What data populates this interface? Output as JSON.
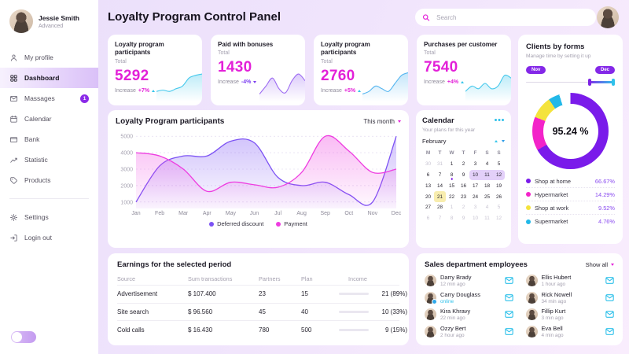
{
  "app": {
    "title": "Loyalty Program Control Panel"
  },
  "header": {
    "search_placeholder": "Search"
  },
  "sidebar": {
    "user": {
      "name": "Jessie Smith",
      "role": "Advanced"
    },
    "items": [
      {
        "label": "My profile",
        "icon": "profile-icon"
      },
      {
        "label": "Dashboard",
        "icon": "dashboard-icon",
        "active": true
      },
      {
        "label": "Massages",
        "icon": "mail-icon",
        "badge": "1"
      },
      {
        "label": "Calendar",
        "icon": "calendar-icon"
      },
      {
        "label": "Bank",
        "icon": "bank-icon"
      },
      {
        "label": "Statistic",
        "icon": "statistic-icon"
      },
      {
        "label": "Products",
        "icon": "products-icon"
      }
    ],
    "footer_items": [
      {
        "label": "Settings",
        "icon": "gear-icon"
      },
      {
        "label": "Login out",
        "icon": "logout-icon"
      }
    ]
  },
  "stat_cards": [
    {
      "title": "Loyalty program participants",
      "subtitle": "Total",
      "value": "5292",
      "increase_label": "Increase",
      "change": "+7%",
      "direction": "up"
    },
    {
      "title": "Paid with bonuses",
      "subtitle": "Total",
      "value": "1430",
      "increase_label": "Increase",
      "change": "-4%",
      "direction": "down"
    },
    {
      "title": "Loyalty program participants",
      "subtitle": "Total",
      "value": "2760",
      "increase_label": "Increase",
      "change": "+5%",
      "direction": "up"
    },
    {
      "title": "Purchases per customer",
      "subtitle": "Total",
      "value": "7540",
      "increase_label": "Increase",
      "change": "+4%",
      "direction": "up"
    }
  ],
  "main_chart": {
    "title": "Loyalty Program participants",
    "period": "This month"
  },
  "clients": {
    "title": "Clients by forms",
    "subtitle": "Manage time by setting it up",
    "range_start": "Nov",
    "range_end": "Dec",
    "center_label": "95.24 %"
  },
  "calendar": {
    "title": "Calendar",
    "subtitle": "Your plans for this year",
    "month": "February",
    "day_headers": [
      "M",
      "T",
      "W",
      "T",
      "F",
      "S",
      "S"
    ],
    "weeks": [
      [
        {
          "d": "30",
          "muted": true
        },
        {
          "d": "31",
          "muted": true
        },
        {
          "d": "1"
        },
        {
          "d": "2"
        },
        {
          "d": "3"
        },
        {
          "d": "4"
        },
        {
          "d": "5"
        }
      ],
      [
        {
          "d": "6"
        },
        {
          "d": "7"
        },
        {
          "d": "8",
          "dot": true
        },
        {
          "d": "9"
        },
        {
          "d": "10",
          "range": "start"
        },
        {
          "d": "11",
          "range": "mid"
        },
        {
          "d": "12",
          "range": "end"
        }
      ],
      [
        {
          "d": "13"
        },
        {
          "d": "14"
        },
        {
          "d": "15"
        },
        {
          "d": "16"
        },
        {
          "d": "17"
        },
        {
          "d": "18"
        },
        {
          "d": "19"
        }
      ],
      [
        {
          "d": "20"
        },
        {
          "d": "21",
          "highlight": true
        },
        {
          "d": "22"
        },
        {
          "d": "23"
        },
        {
          "d": "24"
        },
        {
          "d": "25"
        },
        {
          "d": "26"
        }
      ],
      [
        {
          "d": "27"
        },
        {
          "d": "28"
        },
        {
          "d": "1",
          "muted": true
        },
        {
          "d": "2",
          "muted": true
        },
        {
          "d": "3",
          "muted": true
        },
        {
          "d": "4",
          "muted": true
        },
        {
          "d": "5",
          "muted": true
        }
      ],
      [
        {
          "d": "6",
          "muted": true
        },
        {
          "d": "7",
          "muted": true
        },
        {
          "d": "8",
          "muted": true
        },
        {
          "d": "9",
          "muted": true
        },
        {
          "d": "10",
          "muted": true
        },
        {
          "d": "11",
          "muted": true
        },
        {
          "d": "12",
          "muted": true
        }
      ]
    ]
  },
  "earnings": {
    "title": "Earnings for the selected period",
    "headers": [
      "Source",
      "Sum transactions",
      "Partners",
      "Plan",
      "Income"
    ],
    "rows": [
      {
        "source": "Advertisement",
        "sum": "$ 107.400",
        "partners": "23",
        "plan": "15",
        "income_label": "21 (89%)",
        "income_pct": 89,
        "bar_fill": 85
      },
      {
        "source": "Site search",
        "sum": "$ 96.560",
        "partners": "45",
        "plan": "40",
        "income_label": "10 (33%)",
        "income_pct": 33,
        "bar_fill": 25
      },
      {
        "source": "Cold calls",
        "sum": "$ 16.430",
        "partners": "780",
        "plan": "500",
        "income_label": "9 (15%)",
        "income_pct": 15,
        "bar_fill": 55
      }
    ]
  },
  "employees": {
    "title": "Sales department employees",
    "show_all_label": "Show all",
    "list": [
      {
        "name": "Darry Brady",
        "status": "12 min ago"
      },
      {
        "name": "Carry Douglass",
        "status": "online",
        "online": true
      },
      {
        "name": "Kira Khravy",
        "status": "22 min ago"
      },
      {
        "name": "Ozzy Bert",
        "status": "2 hour ago"
      },
      {
        "name": "Ellis Hubert",
        "status": "1 hour ago"
      },
      {
        "name": "Rick Nowell",
        "status": "34 min ago"
      },
      {
        "name": "Fillip Kurt",
        "status": "3 min ago"
      },
      {
        "name": "Eva Bell",
        "status": "4 min ago"
      }
    ]
  },
  "colors": {
    "magenta": "#e320d8",
    "purple": "#7c3ff0",
    "cyan": "#35c5ea",
    "yellow": "#f4e33c",
    "badge_purple": "#8b2be8"
  },
  "chart_data": [
    {
      "type": "line",
      "title": "Loyalty Program participants",
      "x": [
        "Jan",
        "Feb",
        "Mar",
        "Apr",
        "May",
        "Jun",
        "Jul",
        "Aug",
        "Sep",
        "Oct",
        "Nov",
        "Dec"
      ],
      "ylim": [
        1000,
        5000
      ],
      "yticks": [
        1000,
        2000,
        3000,
        4000,
        5000
      ],
      "grid": true,
      "legend_position": "bottom",
      "series": [
        {
          "name": "Deferred discount",
          "color": "#7c52f4",
          "values": [
            1000,
            3200,
            3800,
            3800,
            4700,
            4600,
            2500,
            2000,
            2200,
            1450,
            1000,
            5000
          ]
        },
        {
          "name": "Payment",
          "color": "#ee3ce0",
          "values": [
            4000,
            3800,
            3000,
            1650,
            2200,
            2050,
            1900,
            2800,
            5000,
            4100,
            2800,
            3000
          ]
        }
      ]
    },
    {
      "type": "pie",
      "title": "Clients by forms",
      "center_label": "95.24 %",
      "segments": [
        {
          "label": "Shop at home",
          "value": 66.67,
          "color": "#7a1bea"
        },
        {
          "label": "Hypermarket",
          "value": 14.29,
          "color": "#f323c9"
        },
        {
          "label": "Shop at work",
          "value": 9.52,
          "color": "#f4e33c"
        },
        {
          "label": "Supermarket",
          "value": 4.76,
          "color": "#22b8e8"
        }
      ],
      "gap_value": 4.76,
      "gap_color": "#ffffff"
    },
    {
      "type": "area",
      "title": "stat card sparklines",
      "series": [
        {
          "name": "card-1",
          "color": "#44c8ec",
          "values": [
            2,
            2.5,
            2,
            3,
            4,
            7,
            8,
            8.5
          ]
        },
        {
          "name": "card-2",
          "color": "#9d6cf2",
          "values": [
            1,
            4,
            7,
            3,
            1.5,
            6,
            8.5,
            6
          ]
        },
        {
          "name": "card-3",
          "color": "#56b6f0",
          "values": [
            1,
            2,
            4,
            3,
            2,
            5,
            8,
            9
          ]
        },
        {
          "name": "card-4",
          "color": "#44c8ec",
          "values": [
            2,
            4,
            3,
            5,
            3,
            4,
            8,
            7
          ]
        }
      ]
    }
  ]
}
